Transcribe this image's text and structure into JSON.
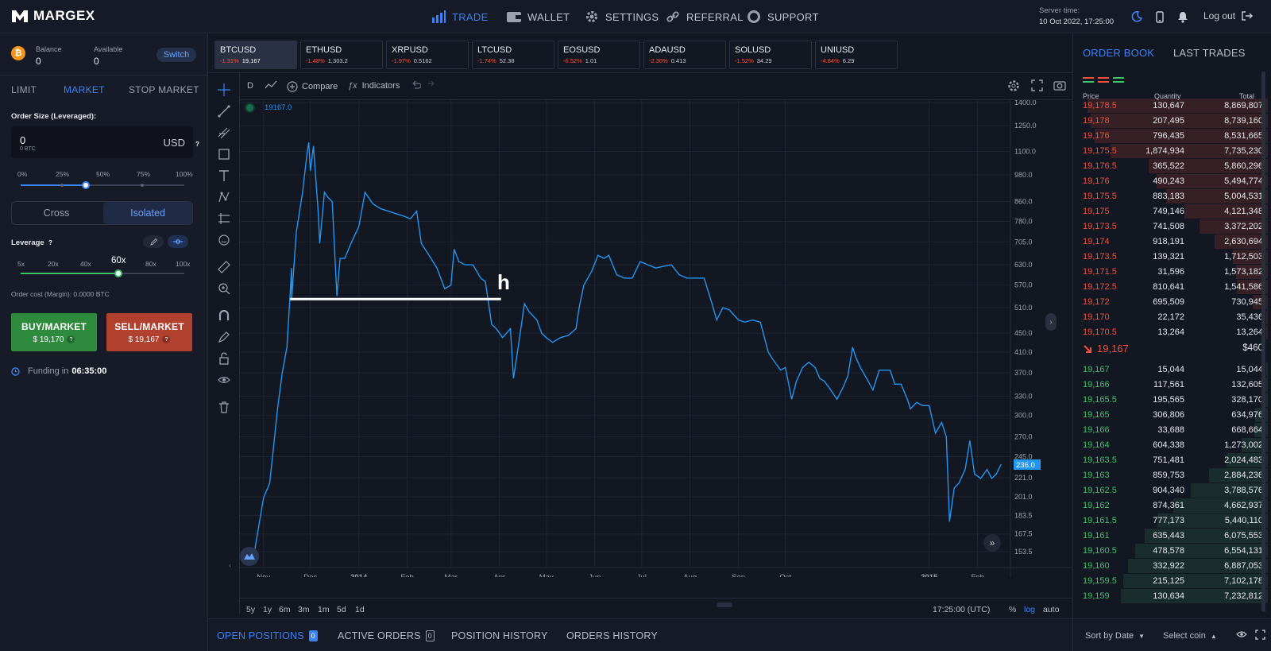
{
  "brand": {
    "name": "MARGEX"
  },
  "nav": {
    "items": [
      {
        "label": "TRADE",
        "icon": "bar-chart-icon",
        "active": true
      },
      {
        "label": "WALLET",
        "icon": "wallet-icon"
      },
      {
        "label": "SETTINGS",
        "icon": "gear-icon"
      },
      {
        "label": "REFERRAL",
        "icon": "link-icon"
      },
      {
        "label": "SUPPORT",
        "icon": "lifebuoy-icon"
      }
    ],
    "server_time_label": "Server time:",
    "server_time_value": "10 Oct 2022, 17:25:00",
    "logout": "Log out"
  },
  "account": {
    "balance_label": "Balance",
    "balance_value": "0",
    "available_label": "Available",
    "available_value": "0",
    "switch": "Switch"
  },
  "order_form": {
    "tabs": [
      "LIMIT",
      "MARKET",
      "STOP MARKET"
    ],
    "active_tab": "MARKET",
    "size_label": "Order Size (Leveraged):",
    "size_value": "0",
    "size_sub": "0 BTC",
    "size_currency": "USD",
    "help": "?",
    "size_percents": [
      "0%",
      "25%",
      "50%",
      "75%",
      "100%"
    ],
    "size_slider_fraction": 0.41,
    "margin_modes": [
      "Cross",
      "Isolated"
    ],
    "active_margin_mode": "Isolated",
    "leverage_label": "Leverage",
    "leverage_options": [
      "5x",
      "20x",
      "40x",
      "60x",
      "80x",
      "100x"
    ],
    "leverage_selected": "60x",
    "order_cost": "Order cost (Margin): 0.0000 BTC",
    "buy_label": "BUY/MARKET",
    "buy_price": "$ 19,170",
    "sell_label": "SELL/MARKET",
    "sell_price": "$ 19,167",
    "funding_label": "Funding in",
    "funding_time": "06:35:00"
  },
  "tickers": [
    {
      "symbol": "BTCUSD",
      "change": "-1.31%",
      "price": "19,167",
      "active": true
    },
    {
      "symbol": "ETHUSD",
      "change": "-1.48%",
      "price": "1,303.2"
    },
    {
      "symbol": "XRPUSD",
      "change": "-1.97%",
      "price": "0.5162"
    },
    {
      "symbol": "LTCUSD",
      "change": "-1.74%",
      "price": "52.38"
    },
    {
      "symbol": "EOSUSD",
      "change": "-6.52%",
      "price": "1.01"
    },
    {
      "symbol": "ADAUSD",
      "change": "-2.36%",
      "price": "0.413"
    },
    {
      "symbol": "SOLUSD",
      "change": "-1.52%",
      "price": "34.29"
    },
    {
      "symbol": "UNIUSD",
      "change": "-4.84%",
      "price": "6.29"
    }
  ],
  "chart_toolbar": {
    "interval": "D",
    "compare": "Compare",
    "indicators": "Indicators"
  },
  "chart_overlay": {
    "legend_value": "19167.0",
    "annotation": "h",
    "current_price_tag": "236.0"
  },
  "chart_footer": {
    "ranges": [
      "5y",
      "1y",
      "6m",
      "3m",
      "1m",
      "5d",
      "1d"
    ],
    "clock": "17:25:00 (UTC)",
    "percent": "%",
    "log": "log",
    "auto": "auto"
  },
  "chart_data": {
    "type": "line",
    "y_scale": "log",
    "y_ticks": [
      "1400.0",
      "1250.0",
      "1100.0",
      "980.0",
      "860.0",
      "780.0",
      "705.0",
      "630.0",
      "570.0",
      "510.0",
      "450.0",
      "410.0",
      "370.0",
      "330.0",
      "300.0",
      "270.0",
      "245.0",
      "221.0",
      "201.0",
      "183.5",
      "167.5",
      "153.5"
    ],
    "x_ticks": [
      "Nov",
      "Dec",
      "2014",
      "Feb",
      "Mar",
      "Apr",
      "May",
      "Jun",
      "Jul",
      "Aug",
      "Sep",
      "Oct",
      "2015",
      "Feb"
    ],
    "series": [
      {
        "color": "#2196f3",
        "points": [
          [
            "2013-10-25",
            145
          ],
          [
            "2013-11-01",
            200
          ],
          [
            "2013-11-05",
            215
          ],
          [
            "2013-11-10",
            310
          ],
          [
            "2013-11-13",
            370
          ],
          [
            "2013-11-16",
            420
          ],
          [
            "2013-11-18",
            540
          ],
          [
            "2013-11-19",
            620
          ],
          [
            "2013-11-19",
            530
          ],
          [
            "2013-11-22",
            740
          ],
          [
            "2013-11-26",
            900
          ],
          [
            "2013-11-29",
            1100
          ],
          [
            "2013-11-30",
            1150
          ],
          [
            "2013-12-01",
            1000
          ],
          [
            "2013-12-03",
            1130
          ],
          [
            "2013-12-06",
            820
          ],
          [
            "2013-12-07",
            700
          ],
          [
            "2013-12-10",
            900
          ],
          [
            "2013-12-12",
            880
          ],
          [
            "2013-12-15",
            860
          ],
          [
            "2013-12-18",
            540
          ],
          [
            "2013-12-20",
            650
          ],
          [
            "2013-12-23",
            650
          ],
          [
            "2013-12-27",
            700
          ],
          [
            "2014-01-01",
            760
          ],
          [
            "2014-01-05",
            900
          ],
          [
            "2014-01-10",
            850
          ],
          [
            "2014-01-15",
            830
          ],
          [
            "2014-01-20",
            820
          ],
          [
            "2014-01-25",
            810
          ],
          [
            "2014-01-30",
            800
          ],
          [
            "2014-02-03",
            790
          ],
          [
            "2014-02-07",
            820
          ],
          [
            "2014-02-10",
            700
          ],
          [
            "2014-02-15",
            660
          ],
          [
            "2014-02-20",
            620
          ],
          [
            "2014-02-25",
            560
          ],
          [
            "2014-03-01",
            570
          ],
          [
            "2014-03-03",
            680
          ],
          [
            "2014-03-06",
            640
          ],
          [
            "2014-03-10",
            630
          ],
          [
            "2014-03-15",
            630
          ],
          [
            "2014-03-20",
            590
          ],
          [
            "2014-03-23",
            580
          ],
          [
            "2014-03-27",
            470
          ],
          [
            "2014-03-30",
            460
          ],
          [
            "2014-04-03",
            440
          ],
          [
            "2014-04-08",
            460
          ],
          [
            "2014-04-10",
            360
          ],
          [
            "2014-04-13",
            420
          ],
          [
            "2014-04-17",
            520
          ],
          [
            "2014-04-20",
            500
          ],
          [
            "2014-04-25",
            480
          ],
          [
            "2014-04-28",
            450
          ],
          [
            "2014-05-01",
            440
          ],
          [
            "2014-05-05",
            430
          ],
          [
            "2014-05-10",
            440
          ],
          [
            "2014-05-15",
            445
          ],
          [
            "2014-05-20",
            460
          ],
          [
            "2014-05-22",
            510
          ],
          [
            "2014-05-25",
            570
          ],
          [
            "2014-05-30",
            610
          ],
          [
            "2014-06-03",
            660
          ],
          [
            "2014-06-07",
            650
          ],
          [
            "2014-06-10",
            660
          ],
          [
            "2014-06-15",
            600
          ],
          [
            "2014-06-20",
            590
          ],
          [
            "2014-06-25",
            590
          ],
          [
            "2014-06-30",
            640
          ],
          [
            "2014-07-05",
            630
          ],
          [
            "2014-07-10",
            620
          ],
          [
            "2014-07-15",
            625
          ],
          [
            "2014-07-20",
            630
          ],
          [
            "2014-07-25",
            600
          ],
          [
            "2014-07-30",
            590
          ],
          [
            "2014-08-03",
            590
          ],
          [
            "2014-08-07",
            590
          ],
          [
            "2014-08-10",
            590
          ],
          [
            "2014-08-15",
            520
          ],
          [
            "2014-08-18",
            480
          ],
          [
            "2014-08-22",
            510
          ],
          [
            "2014-08-26",
            505
          ],
          [
            "2014-09-01",
            480
          ],
          [
            "2014-09-05",
            475
          ],
          [
            "2014-09-10",
            480
          ],
          [
            "2014-09-15",
            475
          ],
          [
            "2014-09-20",
            410
          ],
          [
            "2014-09-23",
            395
          ],
          [
            "2014-09-28",
            375
          ],
          [
            "2014-10-01",
            380
          ],
          [
            "2014-10-05",
            325
          ],
          [
            "2014-10-08",
            355
          ],
          [
            "2014-10-12",
            380
          ],
          [
            "2014-10-16",
            390
          ],
          [
            "2014-10-20",
            380
          ],
          [
            "2014-10-23",
            360
          ],
          [
            "2014-10-26",
            355
          ],
          [
            "2014-10-30",
            340
          ],
          [
            "2014-11-03",
            325
          ],
          [
            "2014-11-07",
            345
          ],
          [
            "2014-11-10",
            365
          ],
          [
            "2014-11-13",
            420
          ],
          [
            "2014-11-15",
            400
          ],
          [
            "2014-11-18",
            380
          ],
          [
            "2014-11-22",
            360
          ],
          [
            "2014-11-26",
            340
          ],
          [
            "2014-11-30",
            375
          ],
          [
            "2014-12-03",
            375
          ],
          [
            "2014-12-07",
            375
          ],
          [
            "2014-12-10",
            350
          ],
          [
            "2014-12-14",
            350
          ],
          [
            "2014-12-18",
            325
          ],
          [
            "2014-12-20",
            310
          ],
          [
            "2014-12-24",
            320
          ],
          [
            "2014-12-28",
            315
          ],
          [
            "2015-01-01",
            315
          ],
          [
            "2015-01-05",
            275
          ],
          [
            "2015-01-09",
            290
          ],
          [
            "2015-01-12",
            270
          ],
          [
            "2015-01-14",
            178
          ],
          [
            "2015-01-17",
            210
          ],
          [
            "2015-01-20",
            215
          ],
          [
            "2015-01-24",
            230
          ],
          [
            "2015-01-27",
            265
          ],
          [
            "2015-01-30",
            225
          ],
          [
            "2015-02-03",
            220
          ],
          [
            "2015-02-07",
            230
          ],
          [
            "2015-02-10",
            220
          ],
          [
            "2015-02-13",
            225
          ],
          [
            "2015-02-16",
            236
          ]
        ]
      }
    ],
    "reference_line": {
      "value": 532,
      "from": "2013-11-18",
      "to": "2014-04-02"
    }
  },
  "bottom_tabs": [
    {
      "label": "OPEN POSITIONS",
      "count": "0",
      "active": true
    },
    {
      "label": "ACTIVE ORDERS",
      "count": "0"
    },
    {
      "label": "POSITION HISTORY"
    },
    {
      "label": "ORDERS HISTORY"
    }
  ],
  "order_book": {
    "tabs": [
      "ORDER BOOK",
      "LAST TRADES"
    ],
    "active_tab": "ORDER BOOK",
    "headers": [
      "Price",
      "Quantity",
      "Total"
    ],
    "asks": [
      {
        "price": "19,178.5",
        "qty": "130,647",
        "total": "8,869,807"
      },
      {
        "price": "19,178",
        "qty": "207,495",
        "total": "8,739,160"
      },
      {
        "price": "19,176",
        "qty": "796,435",
        "total": "8,531,665"
      },
      {
        "price": "19,175.5",
        "qty": "1,874,934",
        "total": "7,735,230"
      },
      {
        "price": "19,176.5",
        "qty": "365,522",
        "total": "5,860,296"
      },
      {
        "price": "19,176",
        "qty": "490,243",
        "total": "5,494,774"
      },
      {
        "price": "19,175.5",
        "qty": "883,183",
        "total": "5,004,531"
      },
      {
        "price": "19,175",
        "qty": "749,146",
        "total": "4,121,348"
      },
      {
        "price": "19,173.5",
        "qty": "741,508",
        "total": "3,372,202"
      },
      {
        "price": "19,174",
        "qty": "918,191",
        "total": "2,630,694"
      },
      {
        "price": "19,173.5",
        "qty": "139,321",
        "total": "1,712,503"
      },
      {
        "price": "19,171.5",
        "qty": "31,596",
        "total": "1,573,182"
      },
      {
        "price": "19,172.5",
        "qty": "810,641",
        "total": "1,541,586"
      },
      {
        "price": "19,172",
        "qty": "695,509",
        "total": "730,945"
      },
      {
        "price": "19,170",
        "qty": "22,172",
        "total": "35,436"
      },
      {
        "price": "19,170.5",
        "qty": "13,264",
        "total": "13,264"
      }
    ],
    "mid_price": "19,167",
    "mid_value": "$460",
    "bids": [
      {
        "price": "19,167",
        "qty": "15,044",
        "total": "15,044"
      },
      {
        "price": "19,166",
        "qty": "117,561",
        "total": "132,605"
      },
      {
        "price": "19,165.5",
        "qty": "195,565",
        "total": "328,170"
      },
      {
        "price": "19,165",
        "qty": "306,806",
        "total": "634,976"
      },
      {
        "price": "19,166",
        "qty": "33,688",
        "total": "668,664"
      },
      {
        "price": "19,164",
        "qty": "604,338",
        "total": "1,273,002"
      },
      {
        "price": "19,163.5",
        "qty": "751,481",
        "total": "2,024,483"
      },
      {
        "price": "19,163",
        "qty": "859,753",
        "total": "2,884,236"
      },
      {
        "price": "19,162.5",
        "qty": "904,340",
        "total": "3,788,576"
      },
      {
        "price": "19,162",
        "qty": "874,361",
        "total": "4,662,937"
      },
      {
        "price": "19,161.5",
        "qty": "777,173",
        "total": "5,440,110"
      },
      {
        "price": "19,161",
        "qty": "635,443",
        "total": "6,075,553"
      },
      {
        "price": "19,160.5",
        "qty": "478,578",
        "total": "6,554,131"
      },
      {
        "price": "19,160",
        "qty": "332,922",
        "total": "6,887,053"
      },
      {
        "price": "19,159.5",
        "qty": "215,125",
        "total": "7,102,178"
      },
      {
        "price": "19,159",
        "qty": "130,634",
        "total": "7,232,812"
      }
    ],
    "sort_by": "Sort by Date",
    "select_coin": "Select coin"
  },
  "colors": {
    "accent": "#3b82f6",
    "buy": "#2e8b3e",
    "sell": "#b2402f",
    "ask": "#f0503c",
    "bid": "#3ec26a",
    "line": "#2196f3"
  }
}
